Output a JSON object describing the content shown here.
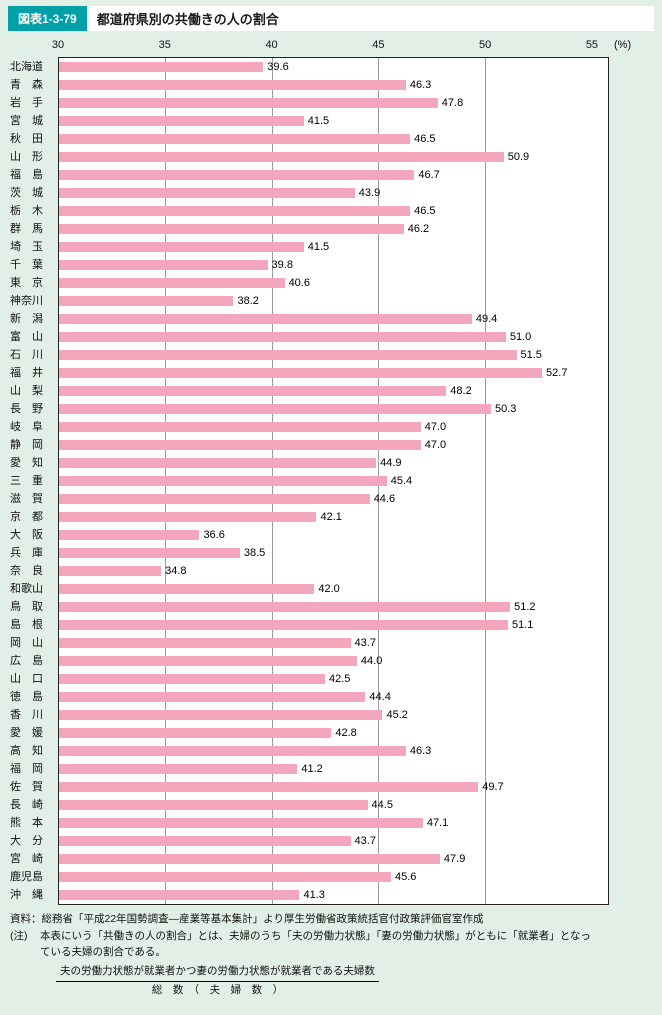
{
  "header": {
    "figure_label": "図表1-3-79",
    "title": "都道府県別の共働きの人の割合"
  },
  "chart_data": {
    "type": "bar",
    "orientation": "horizontal",
    "title": "都道府県別の共働きの人の割合",
    "xlabel": "(%)",
    "xlim": [
      30,
      55
    ],
    "xticks": [
      30,
      35,
      40,
      45,
      50,
      55
    ],
    "x_unit": "(%)",
    "gridlines": [
      35,
      40,
      45,
      50
    ],
    "grid": true,
    "legend": "none",
    "bar_color": "#f3a6bd",
    "categories": [
      "北海道",
      "青　森",
      "岩　手",
      "宮　城",
      "秋　田",
      "山　形",
      "福　島",
      "茨　城",
      "栃　木",
      "群　馬",
      "埼　玉",
      "千　葉",
      "東　京",
      "神奈川",
      "新　潟",
      "富　山",
      "石　川",
      "福　井",
      "山　梨",
      "長　野",
      "岐　阜",
      "静　岡",
      "愛　知",
      "三　重",
      "滋　賀",
      "京　都",
      "大　阪",
      "兵　庫",
      "奈　良",
      "和歌山",
      "鳥　取",
      "島　根",
      "岡　山",
      "広　島",
      "山　口",
      "徳　島",
      "香　川",
      "愛　媛",
      "高　知",
      "福　岡",
      "佐　賀",
      "長　崎",
      "熊　本",
      "大　分",
      "宮　崎",
      "鹿児島",
      "沖　縄"
    ],
    "values": [
      39.6,
      46.3,
      47.8,
      41.5,
      46.5,
      50.9,
      46.7,
      43.9,
      46.5,
      46.2,
      41.5,
      39.8,
      40.6,
      38.2,
      49.4,
      51.0,
      51.5,
      52.7,
      48.2,
      50.3,
      47.0,
      47.0,
      44.9,
      45.4,
      44.6,
      42.1,
      36.6,
      38.5,
      34.8,
      42.0,
      51.2,
      51.1,
      43.7,
      44.0,
      42.5,
      44.4,
      45.2,
      42.8,
      46.3,
      41.2,
      49.7,
      44.5,
      47.1,
      43.7,
      47.9,
      45.6,
      41.3
    ]
  },
  "footer": {
    "source": "資料：総務省「平成22年国勢調査―産業等基本集計」より厚生労働省政策統括官付政策評価官室作成",
    "note_label": "(注)",
    "note_line1": "本表にいう「共働きの人の割合」とは、夫婦のうち「夫の労働力状態」「妻の労働力状態」がともに「就業者」となっ",
    "note_line2": "ている夫婦の割合である。",
    "formula_numerator": "夫の労働力状態が就業者かつ妻の労働力状態が就業者である夫婦数",
    "formula_denominator": "総　数　（　夫　婦　数　）"
  },
  "colors": {
    "background": "#e1efe7",
    "accent_teal": "#00a0a8",
    "bar_pink": "#f3a6bd",
    "plot_background": "#ffffff",
    "gridline": "#9b9b9b"
  }
}
